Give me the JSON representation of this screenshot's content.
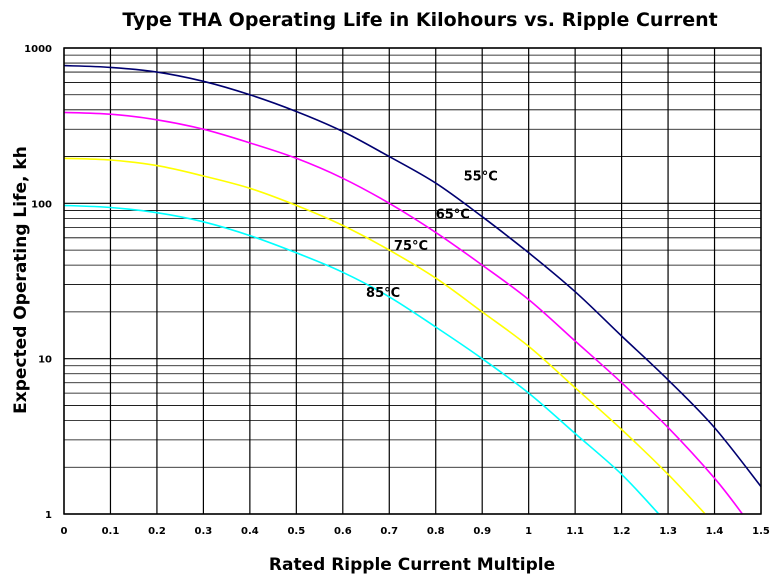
{
  "chart_data": {
    "type": "line",
    "title": "Type THA Operating Life in Kilohours vs. Ripple Current",
    "xlabel": "Rated Ripple Current Multiple",
    "ylabel": "Expected Operating Life, kh",
    "xlim": [
      0,
      1.5
    ],
    "ylim": [
      1,
      1000
    ],
    "y_scale": "log",
    "grid": true,
    "x_ticks": [
      "0",
      "0.1",
      "0.2",
      "0.3",
      "0.4",
      "0.5",
      "0.6",
      "0.7",
      "0.8",
      "0.9",
      "1",
      "1.1",
      "1.2",
      "1.3",
      "1.4",
      "1.5"
    ],
    "y_ticks": [
      "1",
      "10",
      "100",
      "1000"
    ],
    "series": [
      {
        "name": "55°C",
        "color": "#000070",
        "x": [
          0,
          0.1,
          0.2,
          0.3,
          0.4,
          0.5,
          0.6,
          0.7,
          0.8,
          0.9,
          1.0,
          1.1,
          1.2,
          1.3,
          1.4,
          1.5
        ],
        "y": [
          770,
          750,
          700,
          610,
          500,
          390,
          290,
          200,
          135,
          82,
          48,
          27,
          14,
          7.3,
          3.6,
          1.5
        ]
      },
      {
        "name": "65°C",
        "color": "#ff00ff",
        "x": [
          0,
          0.1,
          0.2,
          0.3,
          0.4,
          0.5,
          0.6,
          0.7,
          0.8,
          0.9,
          1.0,
          1.1,
          1.2,
          1.3,
          1.4,
          1.46
        ],
        "y": [
          385,
          375,
          345,
          300,
          245,
          195,
          145,
          100,
          65,
          40,
          24,
          13,
          7,
          3.6,
          1.7,
          1
        ]
      },
      {
        "name": "75°C",
        "color": "#ffff00",
        "x": [
          0,
          0.1,
          0.2,
          0.3,
          0.4,
          0.5,
          0.6,
          0.7,
          0.8,
          0.9,
          1.0,
          1.1,
          1.2,
          1.3,
          1.38
        ],
        "y": [
          195,
          190,
          175,
          150,
          125,
          97,
          72,
          50,
          33,
          20,
          12,
          6.5,
          3.5,
          1.8,
          1
        ]
      },
      {
        "name": "85°C",
        "color": "#00ffff",
        "x": [
          0,
          0.1,
          0.2,
          0.3,
          0.4,
          0.5,
          0.6,
          0.7,
          0.8,
          0.9,
          1.0,
          1.1,
          1.2,
          1.28
        ],
        "y": [
          97,
          94,
          87,
          76,
          62,
          48,
          36,
          25,
          16,
          10,
          6,
          3.3,
          1.8,
          1
        ]
      }
    ],
    "annotations": [
      {
        "text": "55°C",
        "series": 0,
        "x": 0.86,
        "y": 140
      },
      {
        "text": "65°C",
        "series": 1,
        "x": 0.8,
        "y": 80
      },
      {
        "text": "75°C",
        "series": 2,
        "x": 0.71,
        "y": 50
      },
      {
        "text": "85°C",
        "series": 3,
        "x": 0.65,
        "y": 25
      }
    ]
  }
}
